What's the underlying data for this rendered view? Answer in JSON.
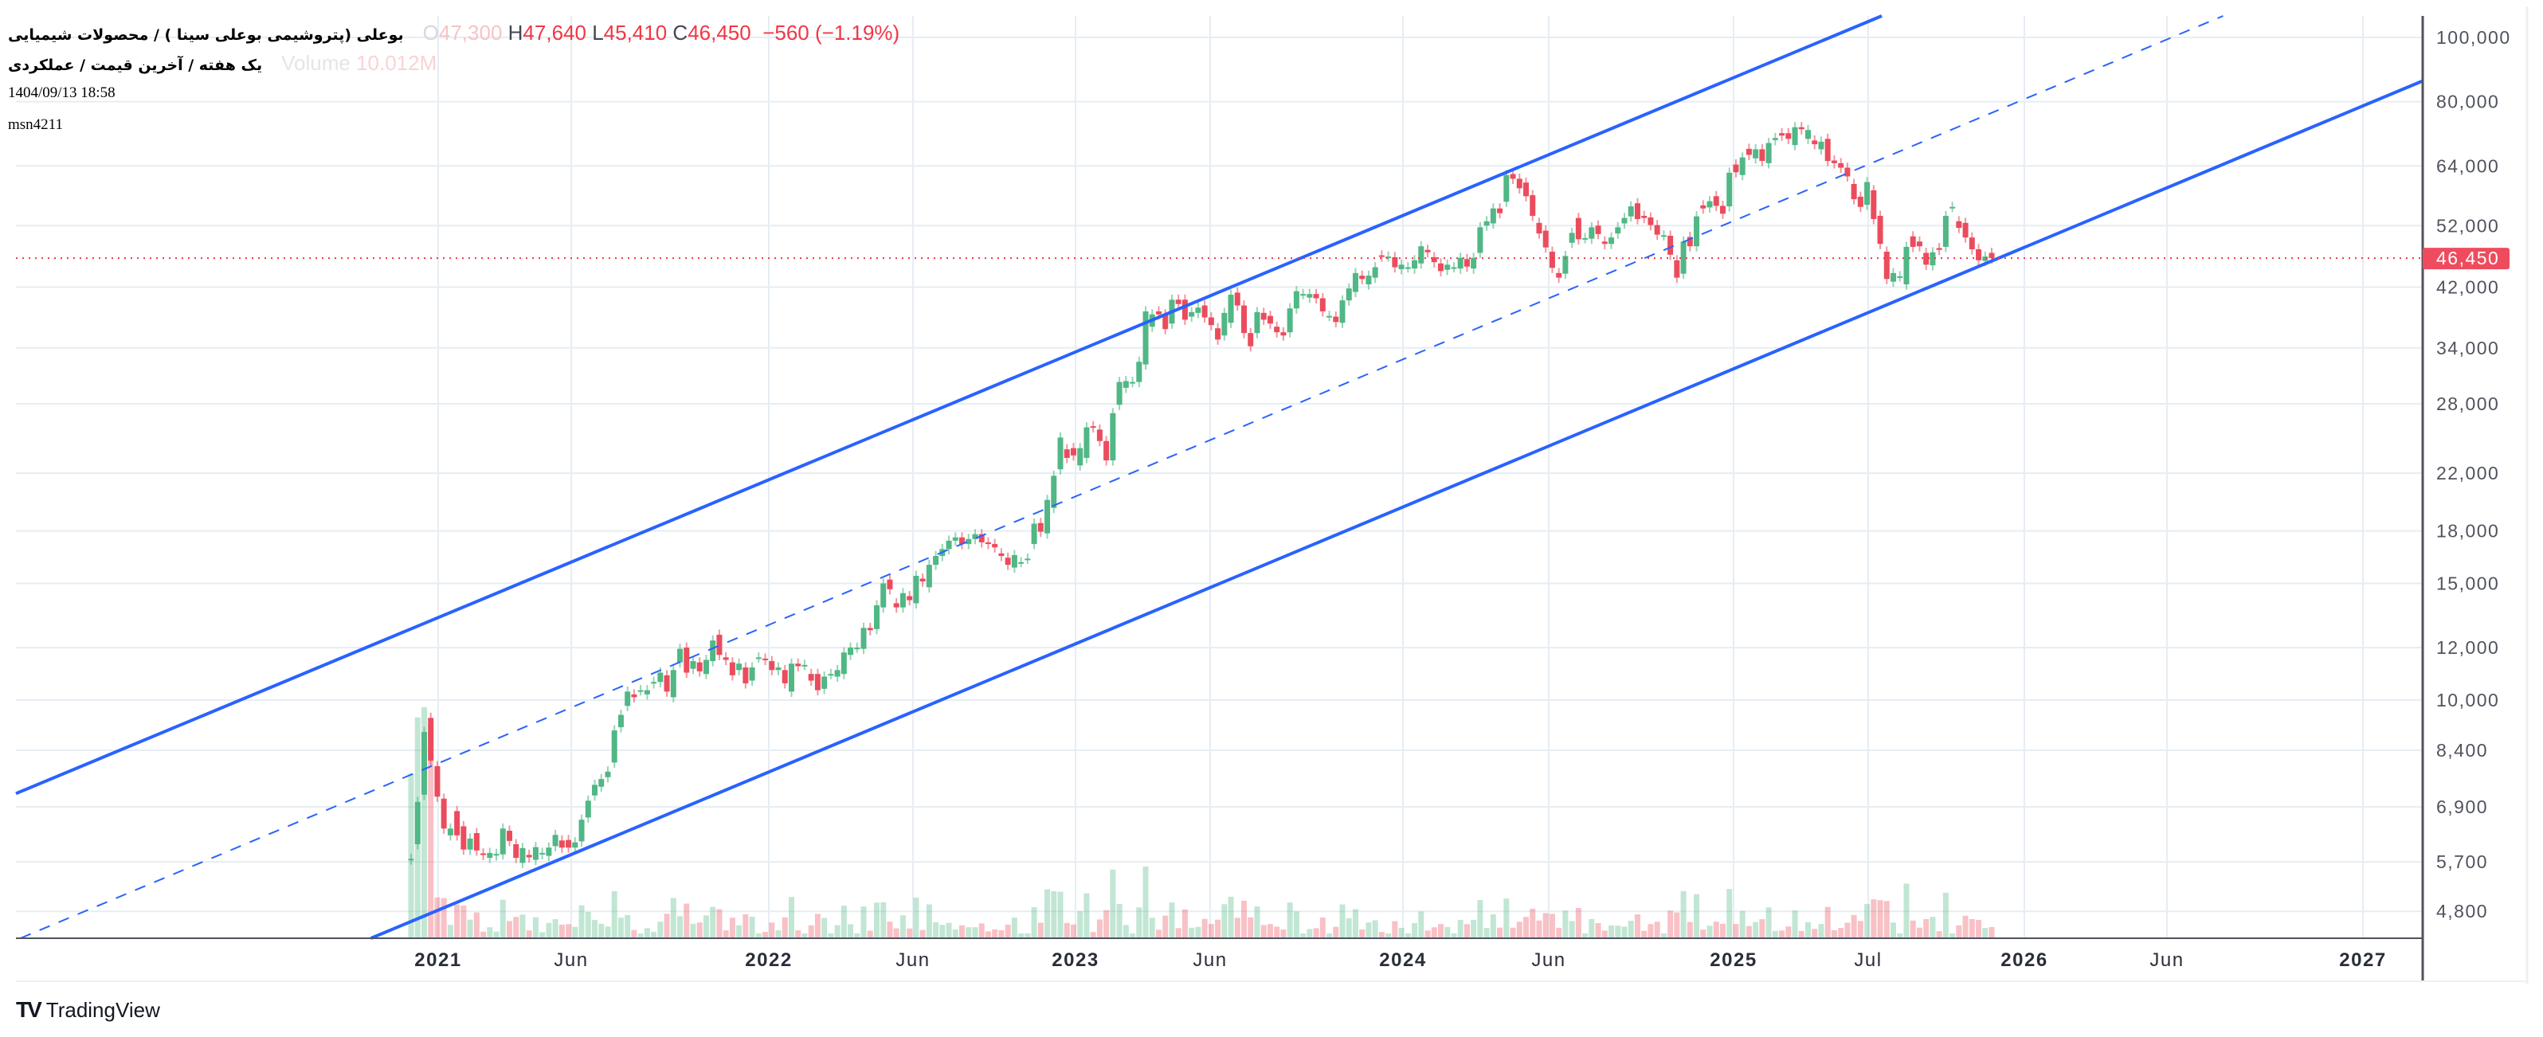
{
  "header": {
    "title": "بوعلی (پتروشیمی بوعلی سینا ) / محصولات شیمیایی",
    "subtitle": "یک هفته / آخرین قیمت / عملکردی",
    "datetime": "1404/09/13 18:58",
    "user": "msn4211",
    "ohlc": {
      "o_label": "O",
      "o_value": "47,300",
      "h_label": "H",
      "h_value": "47,640",
      "l_label": "L",
      "l_value": "45,410",
      "c_label": "C",
      "c_value": "46,450",
      "change": "−560 (−1.19%)"
    },
    "volume_label": "Volume",
    "volume_value": "10.012M"
  },
  "branding": {
    "logo_mark": "17",
    "name": "TradingView"
  },
  "colors": {
    "up": "#50b785",
    "down": "#eb4c5d",
    "channel": "#2962ff",
    "last_price": "#f23645",
    "grid": "#e6edf3"
  },
  "chart_data": {
    "type": "candlestick",
    "timeframe": "1W",
    "y_scale": "log",
    "ylim": [
      4500,
      106000
    ],
    "grid": true,
    "last_price": 46450,
    "last_price_label": "46,450",
    "y_ticks": [
      {
        "value": 100000,
        "label": "100,000"
      },
      {
        "value": 80000,
        "label": "80,000"
      },
      {
        "value": 64000,
        "label": "64,000"
      },
      {
        "value": 52000,
        "label": "52,000"
      },
      {
        "value": 42000,
        "label": "42,000"
      },
      {
        "value": 34000,
        "label": "34,000"
      },
      {
        "value": 28000,
        "label": "28,000"
      },
      {
        "value": 22000,
        "label": "22,000"
      },
      {
        "value": 18000,
        "label": "18,000"
      },
      {
        "value": 15000,
        "label": "15,000"
      },
      {
        "value": 12000,
        "label": "12,000"
      },
      {
        "value": 10000,
        "label": "10,000"
      },
      {
        "value": 8400,
        "label": "8,400"
      },
      {
        "value": 6900,
        "label": "6,900"
      },
      {
        "value": 5700,
        "label": "5,700"
      },
      {
        "value": 4800,
        "label": "4,800"
      }
    ],
    "x_ticks": [
      {
        "label": "2021",
        "major": true
      },
      {
        "label": "Jun",
        "major": false
      },
      {
        "label": "2022",
        "major": true
      },
      {
        "label": "Jun",
        "major": false
      },
      {
        "label": "2023",
        "major": true
      },
      {
        "label": "Jun",
        "major": false
      },
      {
        "label": "2024",
        "major": true
      },
      {
        "label": "Jun",
        "major": false
      },
      {
        "label": "2025",
        "major": true
      },
      {
        "label": "Jul",
        "major": false
      },
      {
        "label": "2026",
        "major": true
      },
      {
        "label": "Jun",
        "major": false
      },
      {
        "label": "2027",
        "major": true
      }
    ],
    "candles_open_close": [
      [
        5750,
        5760
      ],
      [
        6060,
        7020
      ],
      [
        7200,
        8950
      ],
      [
        9400,
        8100
      ],
      [
        7950,
        7150
      ],
      [
        7100,
        6400
      ],
      [
        6250,
        6400
      ],
      [
        6800,
        6250
      ],
      [
        6450,
        5950
      ],
      [
        5950,
        6180
      ],
      [
        6300,
        5930
      ],
      [
        5870,
        5840
      ],
      [
        5780,
        5880
      ],
      [
        5830,
        5860
      ],
      [
        5850,
        6400
      ],
      [
        6350,
        6130
      ],
      [
        6060,
        5780
      ],
      [
        5680,
        5980
      ],
      [
        5840,
        5790
      ],
      [
        5740,
        6000
      ],
      [
        5860,
        5880
      ],
      [
        5820,
        5990
      ],
      [
        6020,
        6260
      ],
      [
        6140,
        5990
      ],
      [
        6150,
        5990
      ],
      [
        5990,
        6100
      ],
      [
        6120,
        6600
      ],
      [
        6650,
        7050
      ],
      [
        7180,
        7450
      ],
      [
        7400,
        7600
      ],
      [
        7650,
        7800
      ],
      [
        8050,
        9000
      ],
      [
        9100,
        9500
      ],
      [
        9800,
        10300
      ],
      [
        10200,
        10100
      ],
      [
        10350,
        10350
      ],
      [
        10200,
        10350
      ],
      [
        10600,
        10650
      ],
      [
        10650,
        11000
      ],
      [
        10900,
        10300
      ],
      [
        10100,
        11100
      ],
      [
        11400,
        11950
      ],
      [
        12000,
        11000
      ],
      [
        11150,
        11450
      ],
      [
        11400,
        11050
      ],
      [
        10950,
        11500
      ],
      [
        11450,
        12300
      ],
      [
        12550,
        11700
      ],
      [
        11600,
        11500
      ],
      [
        11400,
        10900
      ],
      [
        11100,
        11350
      ],
      [
        11200,
        10600
      ],
      [
        10700,
        11200
      ],
      [
        11600,
        11600
      ],
      [
        11550,
        11500
      ],
      [
        11450,
        11100
      ],
      [
        11100,
        11200
      ],
      [
        11100,
        10600
      ],
      [
        10300,
        11350
      ],
      [
        11350,
        11250
      ],
      [
        11300,
        11300
      ],
      [
        10950,
        10700
      ],
      [
        10950,
        10350
      ],
      [
        10400,
        10850
      ],
      [
        10950,
        10950
      ],
      [
        10850,
        11100
      ],
      [
        10950,
        11800
      ],
      [
        11700,
        12000
      ],
      [
        12000,
        12000
      ],
      [
        11950,
        12850
      ],
      [
        12850,
        12750
      ],
      [
        12800,
        13900
      ],
      [
        13800,
        15000
      ],
      [
        15200,
        14700
      ],
      [
        14000,
        13800
      ],
      [
        13800,
        14500
      ],
      [
        14350,
        14150
      ],
      [
        14000,
        15400
      ],
      [
        15250,
        15100
      ],
      [
        14800,
        16000
      ],
      [
        16000,
        16500
      ],
      [
        16500,
        16900
      ],
      [
        16900,
        17400
      ],
      [
        17400,
        17600
      ],
      [
        17600,
        17200
      ],
      [
        17200,
        17500
      ],
      [
        17500,
        17800
      ],
      [
        17800,
        17300
      ],
      [
        17300,
        17200
      ],
      [
        17200,
        17000
      ],
      [
        16650,
        16500
      ],
      [
        16400,
        16000
      ],
      [
        15850,
        16550
      ],
      [
        16150,
        16150
      ],
      [
        16350,
        16350
      ],
      [
        17200,
        18460
      ],
      [
        18500,
        17950
      ],
      [
        17850,
        20050
      ],
      [
        19500,
        21800
      ],
      [
        22300,
        24900
      ],
      [
        23900,
        23200
      ],
      [
        24000,
        23400
      ],
      [
        22600,
        24000
      ],
      [
        23200,
        25800
      ],
      [
        25900,
        25800
      ],
      [
        25600,
        24600
      ],
      [
        24600,
        23000
      ],
      [
        23000,
        27100
      ],
      [
        27900,
        30200
      ],
      [
        29600,
        30300
      ],
      [
        30200,
        30200
      ],
      [
        30200,
        32400
      ],
      [
        32100,
        38600
      ],
      [
        36600,
        38200
      ],
      [
        38600,
        38200
      ],
      [
        38200,
        36300
      ],
      [
        37000,
        40200
      ],
      [
        40200,
        39600
      ],
      [
        40200,
        37500
      ],
      [
        37900,
        38500
      ],
      [
        38400,
        39100
      ],
      [
        39400,
        37800
      ],
      [
        37800,
        36800
      ],
      [
        36400,
        35000
      ],
      [
        35500,
        38400
      ],
      [
        37100,
        40900
      ],
      [
        41200,
        39400
      ],
      [
        39400,
        35800
      ],
      [
        35800,
        34200
      ],
      [
        35800,
        38500
      ],
      [
        38400,
        37500
      ],
      [
        38000,
        37000
      ],
      [
        36600,
        35900
      ],
      [
        35900,
        35500
      ],
      [
        35900,
        39000
      ],
      [
        39000,
        41400
      ],
      [
        41000,
        41000
      ],
      [
        40500,
        41000
      ],
      [
        41000,
        40400
      ],
      [
        40400,
        38600
      ],
      [
        38000,
        38000
      ],
      [
        37900,
        37200
      ],
      [
        37100,
        40100
      ],
      [
        40100,
        41800
      ],
      [
        41300,
        44100
      ],
      [
        43700,
        43200
      ],
      [
        42400,
        43700
      ],
      [
        43400,
        45000
      ],
      [
        46900,
        46700
      ],
      [
        46700,
        46700
      ],
      [
        46600,
        45000
      ],
      [
        44700,
        45400
      ],
      [
        45000,
        45000
      ],
      [
        44800,
        46100
      ],
      [
        45600,
        48400
      ],
      [
        47800,
        47400
      ],
      [
        46600,
        45800
      ],
      [
        45600,
        44400
      ],
      [
        44600,
        45400
      ],
      [
        45000,
        45000
      ],
      [
        44800,
        46500
      ],
      [
        46300,
        45100
      ],
      [
        44800,
        46500
      ],
      [
        47300,
        51700
      ],
      [
        52000,
        52800
      ],
      [
        52400,
        55200
      ],
      [
        55200,
        54300
      ],
      [
        56500,
        62000
      ],
      [
        62200,
        61200
      ],
      [
        61200,
        59200
      ],
      [
        60400,
        57600
      ],
      [
        57800,
        53800
      ],
      [
        52500,
        50600
      ],
      [
        51100,
        48200
      ],
      [
        47500,
        44900
      ],
      [
        44100,
        43400
      ],
      [
        44000,
        46800
      ],
      [
        49000,
        50700
      ],
      [
        53400,
        49600
      ],
      [
        49800,
        49800
      ],
      [
        49700,
        51700
      ],
      [
        52000,
        50500
      ],
      [
        49200,
        48800
      ],
      [
        48800,
        49900
      ],
      [
        50600,
        51700
      ],
      [
        52400,
        53400
      ],
      [
        53700,
        55600
      ],
      [
        56200,
        53200
      ],
      [
        53800,
        53400
      ],
      [
        53500,
        52100
      ],
      [
        52100,
        50400
      ],
      [
        50300,
        50300
      ],
      [
        50200,
        47000
      ],
      [
        46100,
        43400
      ],
      [
        44000,
        49200
      ],
      [
        50000,
        48400
      ],
      [
        48400,
        53700
      ],
      [
        55800,
        55200
      ],
      [
        55400,
        56600
      ],
      [
        57600,
        55700
      ],
      [
        55700,
        54200
      ],
      [
        55600,
        62500
      ],
      [
        64300,
        62600
      ],
      [
        62000,
        65900
      ],
      [
        67900,
        66500
      ],
      [
        65700,
        67800
      ],
      [
        67800,
        65100
      ],
      [
        64600,
        69300
      ],
      [
        70000,
        70500
      ],
      [
        71700,
        71100
      ],
      [
        71700,
        70300
      ],
      [
        68800,
        73200
      ],
      [
        73200,
        72700
      ],
      [
        70300,
        72500
      ],
      [
        69900,
        69000
      ],
      [
        67800,
        69600
      ],
      [
        70300,
        65100
      ],
      [
        65200,
        64600
      ],
      [
        64600,
        63600
      ],
      [
        63600,
        61700
      ],
      [
        60100,
        57000
      ],
      [
        57500,
        55500
      ],
      [
        55900,
        60500
      ],
      [
        58800,
        53200
      ],
      [
        53800,
        48800
      ],
      [
        47500,
        43200
      ],
      [
        42800,
        44100
      ],
      [
        43600,
        43600
      ],
      [
        42400,
        48300
      ],
      [
        50100,
        48300
      ],
      [
        49200,
        48400
      ],
      [
        47300,
        45400
      ],
      [
        45300,
        47400
      ],
      [
        48100,
        47800
      ],
      [
        48300,
        53800
      ],
      [
        55500,
        55500
      ],
      [
        52800,
        51600
      ],
      [
        52500,
        49900
      ],
      [
        49900,
        47900
      ],
      [
        47900,
        46100
      ],
      [
        46000,
        46700
      ],
      [
        47300,
        46450
      ]
    ],
    "drawings": [
      "parallel-channel-upper",
      "parallel-channel-middle-dashed",
      "parallel-channel-lower"
    ]
  }
}
